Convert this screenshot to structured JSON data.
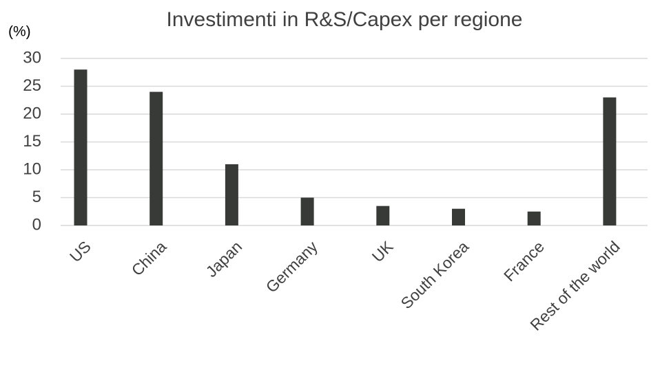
{
  "chart_data": {
    "type": "bar",
    "title": "Investimenti in R&S/Capex per regione",
    "y_label": "(%)",
    "categories": [
      "US",
      "China",
      "Japan",
      "Germany",
      "UK",
      "South Korea",
      "France",
      "Rest of the world"
    ],
    "values": [
      28,
      24,
      11,
      5,
      3.5,
      3,
      2.5,
      23
    ],
    "color": "#383a38",
    "ylim": [
      0,
      30
    ],
    "yticks": [
      0,
      5,
      10,
      15,
      20,
      25,
      30
    ],
    "grid": true
  }
}
